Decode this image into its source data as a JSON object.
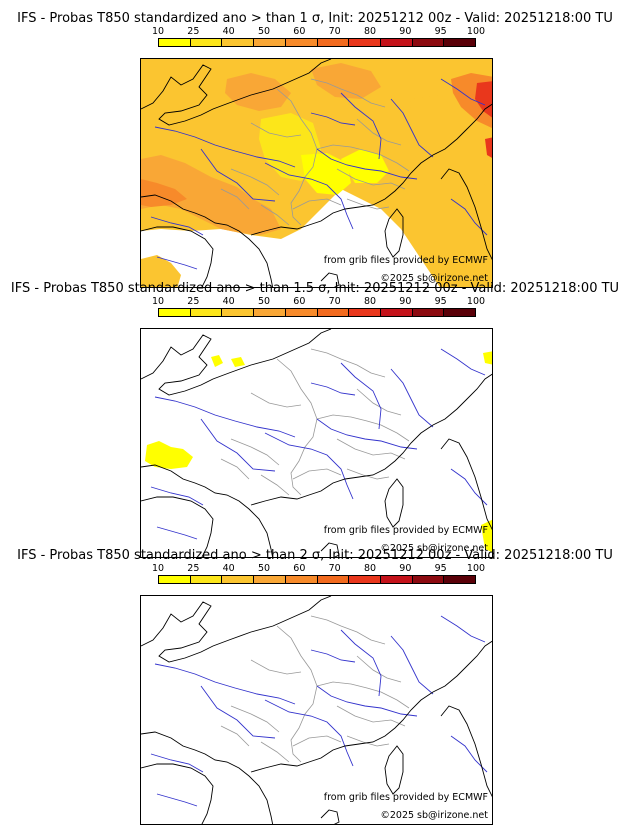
{
  "panels": [
    {
      "title": "IFS - Probas T850  standardized ano > than 1 σ, Init: 20251212 00z - Valid: 20251218:00 TU",
      "credit_source": "from grib files provided by ECMWF",
      "credit_copyright": "©2025 sb@irizone.net",
      "anomaly_shading": "extensive"
    },
    {
      "title": "IFS - Probas T850  standardized ano > than 1.5 σ, Init: 20251212 00z - Valid: 20251218:00 TU",
      "credit_source": "from grib files provided by ECMWF",
      "credit_copyright": "©2025 sb@irizone.net",
      "anomaly_shading": "sparse"
    },
    {
      "title": "IFS - Probas T850  standardized ano > than 2 σ, Init: 20251212 00z - Valid: 20251218:00 TU",
      "credit_source": "from grib files provided by ECMWF",
      "credit_copyright": "©2025 sb@irizone.net",
      "anomaly_shading": "none"
    }
  ],
  "colorbar": {
    "ticks": [
      "10",
      "25",
      "40",
      "50",
      "60",
      "70",
      "80",
      "90",
      "95",
      "100"
    ],
    "colors": [
      "#ffff00",
      "#fce61a",
      "#fbc530",
      "#f9a736",
      "#f78a2a",
      "#f26a1e",
      "#e9371c",
      "#c4121a",
      "#8c0a10",
      "#5a0008"
    ]
  },
  "map_colors": {
    "coastline": "#000000",
    "rivers": "#3333cc",
    "borders": "#999999"
  }
}
